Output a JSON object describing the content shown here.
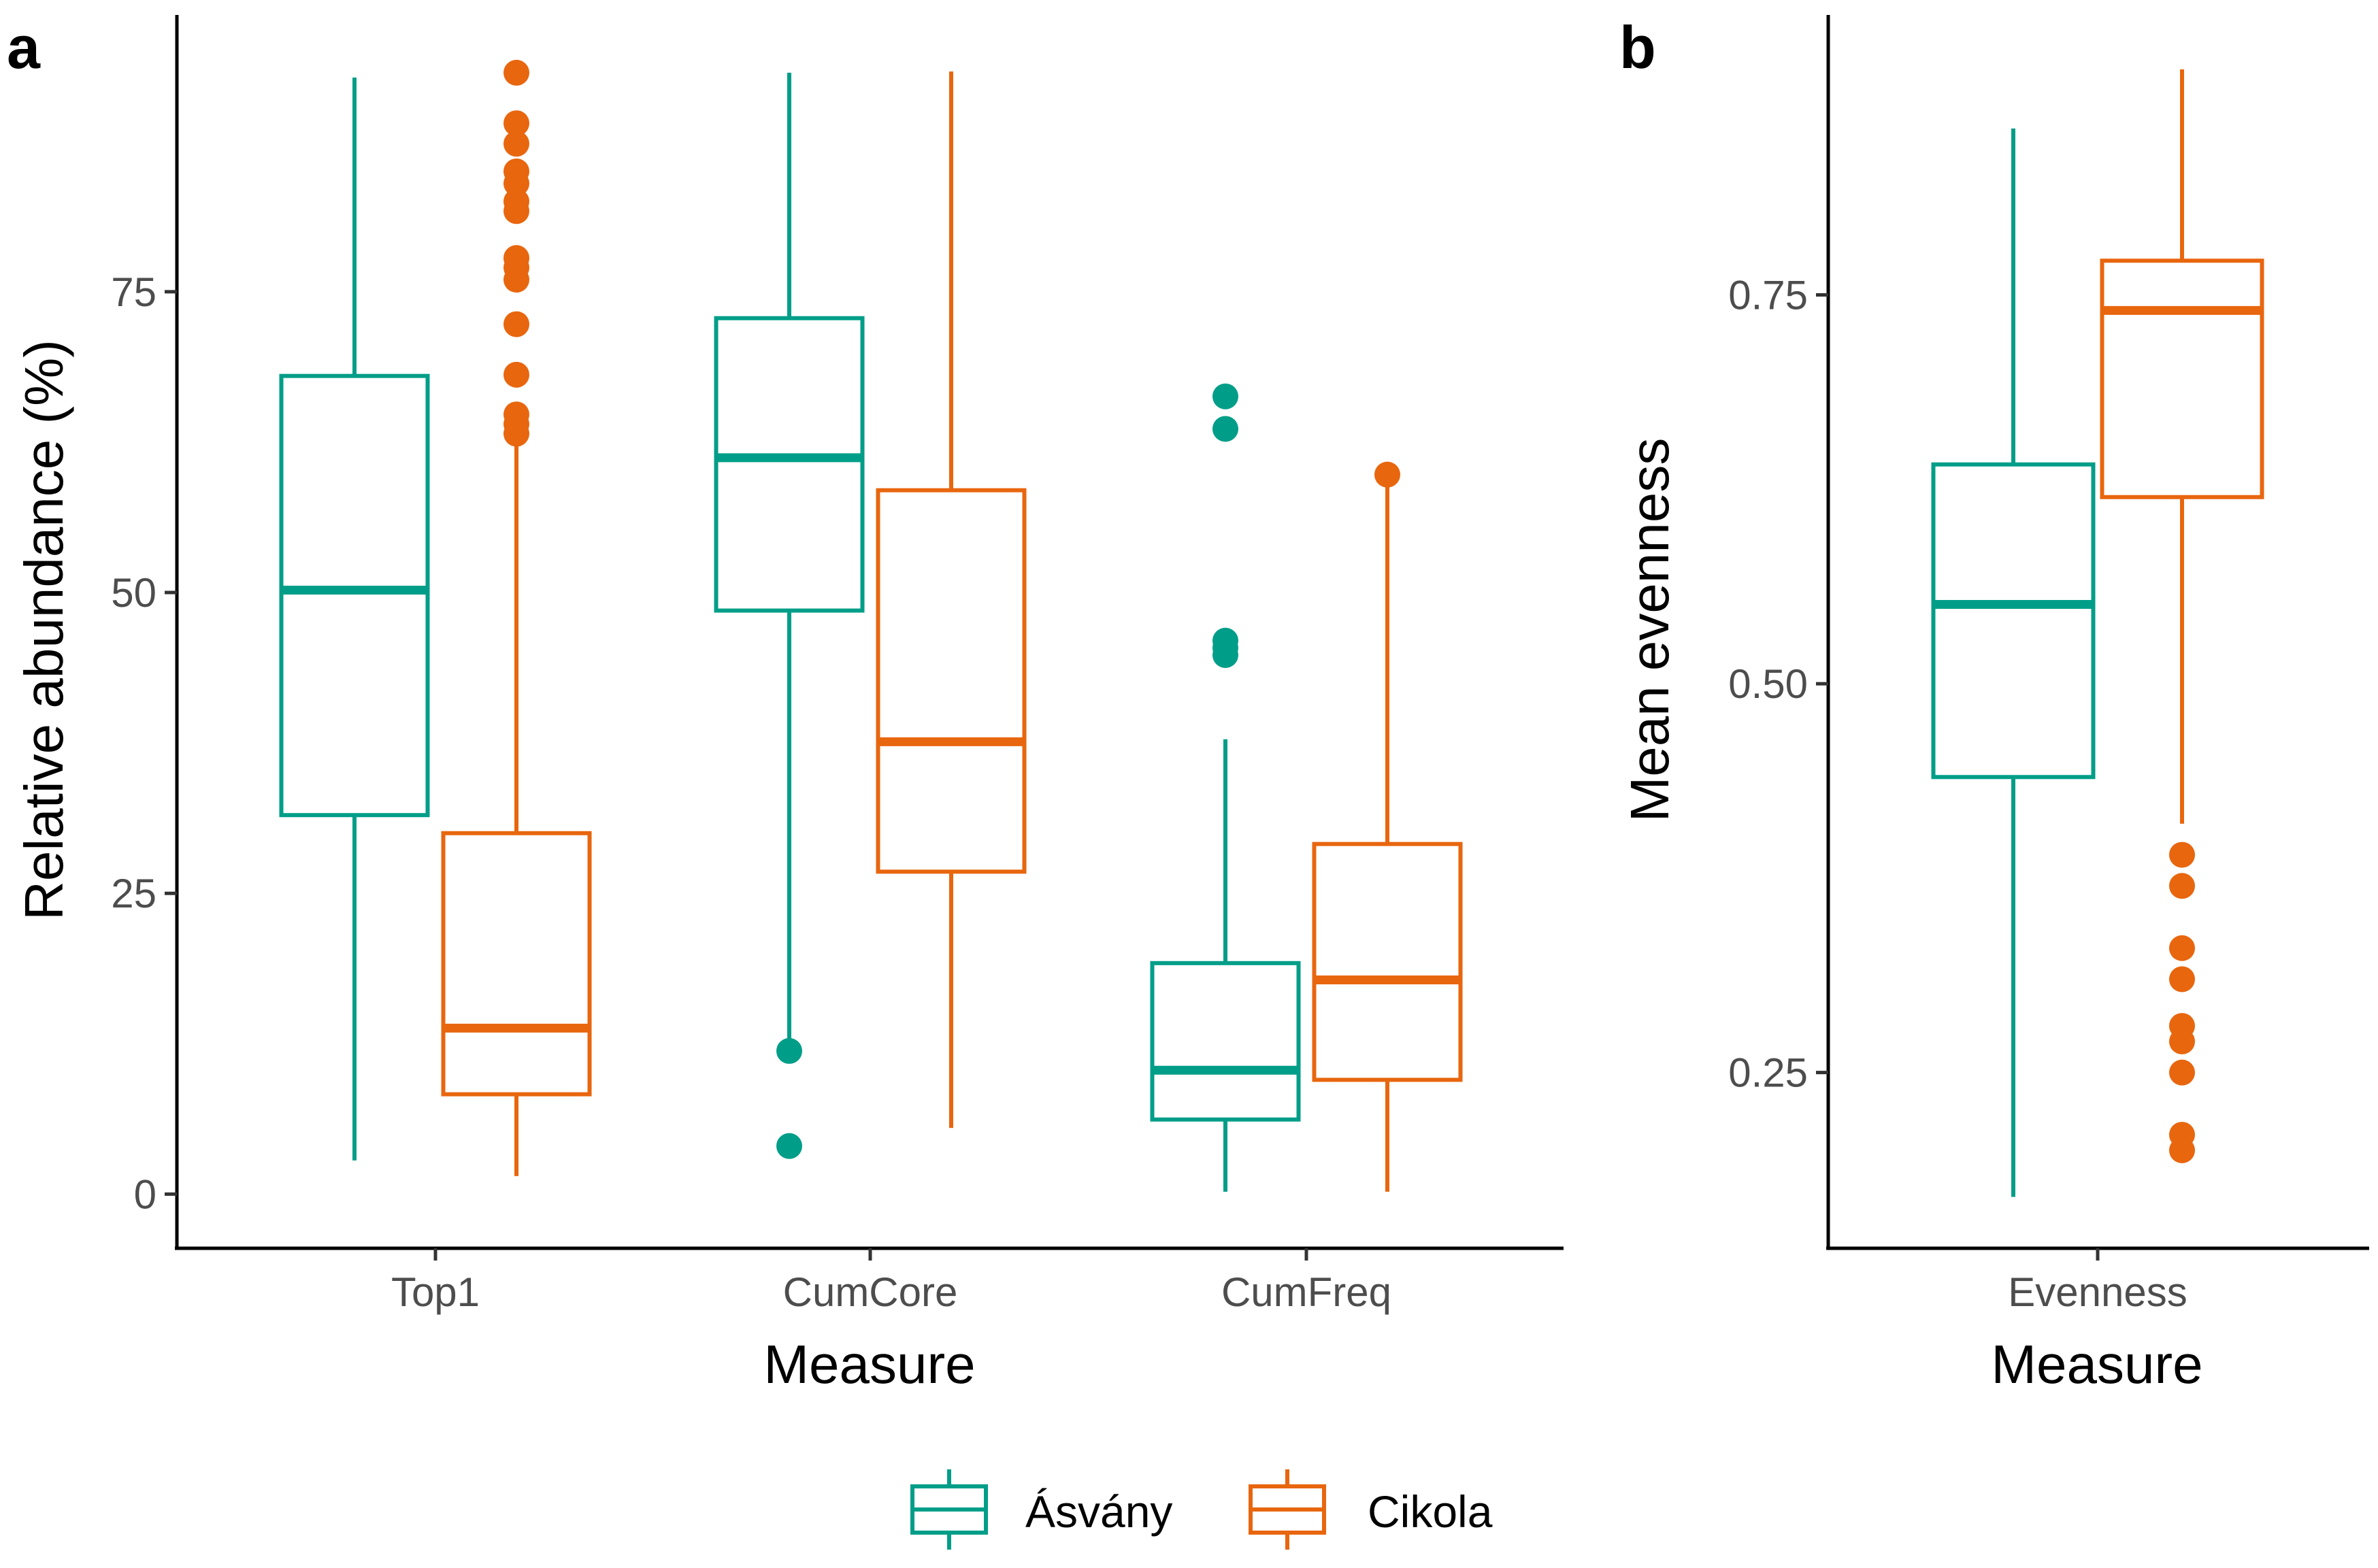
{
  "colors": {
    "Ásvány": "#009e88",
    "Cikola": "#e8660e"
  },
  "legend": [
    "Ásvány",
    "Cikola"
  ],
  "chart_data": [
    {
      "panel": "a",
      "type": "boxplot",
      "xlabel": "Measure",
      "ylabel": "Relative abundance (%)",
      "ylim": [
        -4.5,
        98
      ],
      "yticks": [
        0,
        25,
        50,
        75
      ],
      "ytick_labels": [
        "0",
        "25",
        "50",
        "75"
      ],
      "categories": [
        "Top1",
        "CumCore",
        "CumFreq"
      ],
      "series": [
        {
          "name": "Ásvány",
          "boxes": [
            {
              "category": "Top1",
              "lower_whisker": 2.8,
              "q1": 31.5,
              "median": 50.2,
              "q3": 68.0,
              "upper_whisker": 92.8,
              "outliers": []
            },
            {
              "category": "CumCore",
              "lower_whisker": 12.0,
              "q1": 48.5,
              "median": 61.2,
              "q3": 72.8,
              "upper_whisker": 93.2,
              "outliers": [
                11.9,
                4.0
              ]
            },
            {
              "category": "CumFreq",
              "lower_whisker": 0.2,
              "q1": 6.2,
              "median": 10.3,
              "q3": 19.2,
              "upper_whisker": 37.8,
              "outliers": [
                44.8,
                45.4,
                46.0,
                63.6,
                66.3
              ]
            }
          ]
        },
        {
          "name": "Cikola",
          "boxes": [
            {
              "category": "Top1",
              "lower_whisker": 1.5,
              "q1": 8.3,
              "median": 13.8,
              "q3": 30.0,
              "upper_whisker": 62.5,
              "outliers": [
                63.2,
                64.0,
                64.8,
                68.1,
                72.3,
                76.0,
                77.0,
                77.8,
                81.7,
                82.5,
                84.0,
                85.0,
                87.3,
                89.0,
                93.2
              ]
            },
            {
              "category": "CumCore",
              "lower_whisker": 5.5,
              "q1": 26.8,
              "median": 37.6,
              "q3": 58.5,
              "upper_whisker": 93.3,
              "outliers": []
            },
            {
              "category": "CumFreq",
              "lower_whisker": 0.2,
              "q1": 9.5,
              "median": 17.8,
              "q3": 29.1,
              "upper_whisker": 59.8,
              "outliers": [
                59.8
              ]
            }
          ]
        }
      ]
    },
    {
      "panel": "b",
      "type": "boxplot",
      "xlabel": "Measure",
      "ylabel": "Mean evenness",
      "ylim": [
        0.137,
        0.93
      ],
      "yticks": [
        0.25,
        0.5,
        0.75
      ],
      "ytick_labels": [
        "0.25",
        "0.50",
        "0.75"
      ],
      "categories": [
        "Evenness"
      ],
      "series": [
        {
          "name": "Ásvány",
          "boxes": [
            {
              "category": "Evenness",
              "lower_whisker": 0.17,
              "q1": 0.44,
              "median": 0.551,
              "q3": 0.641,
              "upper_whisker": 0.857,
              "outliers": []
            }
          ]
        },
        {
          "name": "Cikola",
          "boxes": [
            {
              "category": "Evenness",
              "lower_whisker": 0.41,
              "q1": 0.62,
              "median": 0.74,
              "q3": 0.772,
              "upper_whisker": 0.895,
              "outliers": [
                0.2,
                0.21,
                0.25,
                0.27,
                0.28,
                0.31,
                0.33,
                0.37,
                0.39
              ]
            }
          ]
        }
      ]
    }
  ]
}
